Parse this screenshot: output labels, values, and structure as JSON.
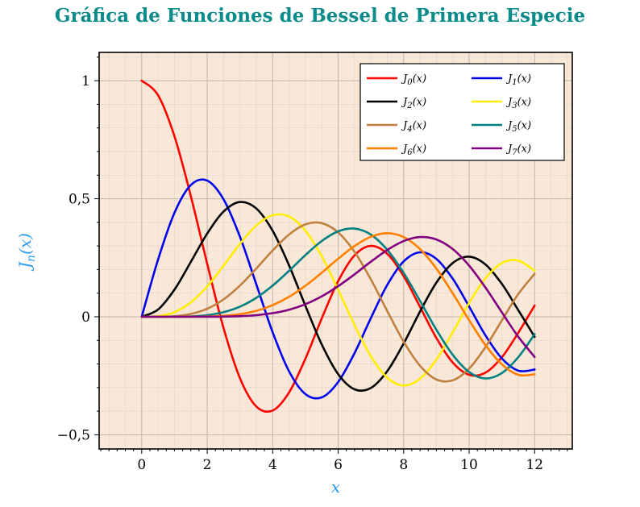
{
  "page": {
    "title": "Gráfica de Funciones de Bessel de Primera Especie",
    "title_color": "#0c8b8b"
  },
  "chart_data": {
    "type": "line",
    "title": "Gráfica de Funciones de Bessel de Primera Especie",
    "xlabel": "x",
    "ylabel": "J_n(x)",
    "xlim": [
      -1.3,
      13.15
    ],
    "ylim": [
      -0.56,
      1.12
    ],
    "grid": "both",
    "legend": {
      "position": "top-right",
      "columns": 2
    },
    "colors": {
      "plot_background": "#f9e8d8",
      "grid_major": "#bfb5a9",
      "grid_minor": "#e2d7ca",
      "frame": "#000000",
      "tick_label": "#000000",
      "axis_label": "#2d9bf0",
      "legend_background": "#ffffff",
      "legend_border": "#000000"
    },
    "xticks": {
      "values": [
        0,
        2,
        4,
        6,
        8,
        10,
        12
      ],
      "labels": [
        "0",
        "2",
        "4",
        "6",
        "8",
        "10",
        "12"
      ],
      "minor_step": 0.25
    },
    "yticks": {
      "values": [
        -0.5,
        0,
        0.5,
        1
      ],
      "labels": [
        "−0,5",
        "0",
        "0,5",
        "1"
      ],
      "minor_step": 0.1
    },
    "x": [
      0,
      0.5,
      1,
      1.5,
      2,
      2.5,
      3,
      3.5,
      4,
      4.5,
      5,
      5.5,
      6,
      6.5,
      7,
      7.5,
      8,
      8.5,
      9,
      9.5,
      10,
      10.5,
      11,
      11.5,
      12
    ],
    "series": [
      {
        "name": "J_0(x)",
        "order": 0,
        "color": "#ff0000",
        "values": [
          1.0,
          0.9385,
          0.7652,
          0.5118,
          0.2239,
          -0.0484,
          -0.2601,
          -0.3801,
          -0.3971,
          -0.3205,
          -0.1776,
          -0.0068,
          0.1506,
          0.2601,
          0.3001,
          0.2663,
          0.1717,
          0.0419,
          -0.0903,
          -0.1939,
          -0.2459,
          -0.2366,
          -0.1712,
          -0.0677,
          0.0477
        ]
      },
      {
        "name": "J_1(x)",
        "order": 1,
        "color": "#0000ee",
        "values": [
          0,
          0.2423,
          0.4401,
          0.5579,
          0.5767,
          0.4971,
          0.3391,
          0.1374,
          -0.066,
          -0.2311,
          -0.3276,
          -0.3414,
          -0.2767,
          -0.1538,
          -0.0047,
          0.1352,
          0.2346,
          0.2731,
          0.2453,
          0.1613,
          0.0435,
          -0.0789,
          -0.1768,
          -0.2284,
          -0.2234
        ]
      },
      {
        "name": "J_2(x)",
        "order": 2,
        "color": "#000000",
        "values": [
          0,
          0.0306,
          0.1149,
          0.2321,
          0.3528,
          0.4461,
          0.4861,
          0.4586,
          0.3641,
          0.2178,
          0.0466,
          -0.1173,
          -0.2429,
          -0.3074,
          -0.3014,
          -0.2303,
          -0.113,
          0.0223,
          0.1448,
          0.2279,
          0.2546,
          0.2216,
          0.139,
          0.0279,
          -0.0849
        ]
      },
      {
        "name": "J_3(x)",
        "order": 3,
        "color": "#ffee00",
        "values": [
          0,
          0.0026,
          0.0196,
          0.061,
          0.1289,
          0.2166,
          0.3091,
          0.3868,
          0.4302,
          0.4247,
          0.3648,
          0.2561,
          0.1148,
          -0.0353,
          -0.1676,
          -0.2581,
          -0.2911,
          -0.2626,
          -0.1809,
          -0.0653,
          0.0584,
          0.1633,
          0.2273,
          0.2381,
          0.1951
        ]
      },
      {
        "name": "J_4(x)",
        "order": 4,
        "color": "#bf8040",
        "values": [
          0,
          0.0002,
          0.0025,
          0.0118,
          0.034,
          0.0738,
          0.132,
          0.2044,
          0.2811,
          0.3484,
          0.3912,
          0.3967,
          0.3576,
          0.2748,
          0.1578,
          0.0238,
          -0.1054,
          -0.2077,
          -0.2655,
          -0.269,
          -0.2196,
          -0.1283,
          -0.015,
          0.0963,
          0.1825
        ]
      },
      {
        "name": "J_5(x)",
        "order": 5,
        "color": "#008080",
        "values": [
          0,
          0.0,
          0.0002,
          0.0018,
          0.007,
          0.0195,
          0.043,
          0.0804,
          0.1321,
          0.1947,
          0.2611,
          0.3209,
          0.3621,
          0.3736,
          0.3479,
          0.2835,
          0.1858,
          0.0671,
          -0.055,
          -0.1613,
          -0.2341,
          -0.2611,
          -0.2383,
          -0.1711,
          -0.0735
        ]
      },
      {
        "name": "J_6(x)",
        "order": 6,
        "color": "#ff8000",
        "values": [
          0,
          0.0,
          0.0,
          0.0002,
          0.0012,
          0.0042,
          0.0114,
          0.0254,
          0.0491,
          0.0843,
          0.131,
          0.1868,
          0.2458,
          0.2999,
          0.3392,
          0.3541,
          0.3376,
          0.2867,
          0.2043,
          0.0993,
          -0.0145,
          -0.1203,
          -0.2016,
          -0.2458,
          -0.2437
        ]
      },
      {
        "name": "J_7(x)",
        "order": 7,
        "color": "#800080",
        "values": [
          0,
          0.0,
          0.0,
          0.0,
          0.0002,
          0.0008,
          0.0025,
          0.0067,
          0.0152,
          0.03,
          0.0534,
          0.0866,
          0.1296,
          0.1801,
          0.2336,
          0.2832,
          0.3206,
          0.3376,
          0.3275,
          0.2868,
          0.2167,
          0.1236,
          0.0184,
          -0.0846,
          -0.1703
        ]
      }
    ]
  }
}
